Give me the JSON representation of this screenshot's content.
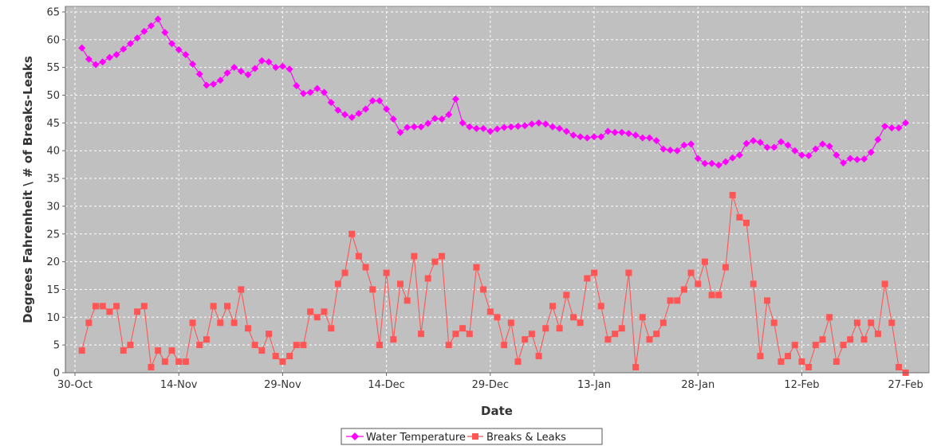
{
  "chart_data": {
    "type": "line",
    "xlabel": "Date",
    "ylabel": "Degrees Fahrenheit \\ # of Breaks-Leaks",
    "ylim": [
      0,
      66
    ],
    "yticks": [
      0,
      5,
      10,
      15,
      20,
      25,
      30,
      35,
      40,
      45,
      50,
      55,
      60,
      65
    ],
    "x_start": "30-Oct",
    "xlim_days": [
      0,
      122
    ],
    "xticks": [
      {
        "label": "30-Oct",
        "day": 0
      },
      {
        "label": "14-Nov",
        "day": 15
      },
      {
        "label": "29-Nov",
        "day": 30
      },
      {
        "label": "14-Dec",
        "day": 45
      },
      {
        "label": "29-Dec",
        "day": 60
      },
      {
        "label": "13-Jan",
        "day": 75
      },
      {
        "label": "28-Jan",
        "day": 90
      },
      {
        "label": "12-Feb",
        "day": 105
      },
      {
        "label": "27-Feb",
        "day": 120
      }
    ],
    "grid": true,
    "legend": "bottom-center",
    "series": [
      {
        "name": "Water Temperature",
        "color": "#ff00ff",
        "marker": "diamond",
        "start_day": 1,
        "values": [
          58.5,
          56.5,
          55.5,
          56.0,
          56.8,
          57.3,
          58.3,
          59.3,
          60.3,
          61.5,
          62.5,
          63.7,
          61.3,
          59.3,
          58.2,
          57.3,
          55.6,
          53.8,
          51.8,
          52.0,
          52.7,
          54.0,
          55.0,
          54.3,
          53.7,
          54.8,
          56.2,
          56.0,
          55.0,
          55.2,
          54.7,
          51.7,
          50.3,
          50.5,
          51.2,
          50.5,
          48.7,
          47.3,
          46.5,
          46.0,
          46.7,
          47.5,
          49.0,
          49.0,
          47.5,
          45.7,
          43.3,
          44.2,
          44.3,
          44.3,
          44.9,
          45.8,
          45.7,
          46.5,
          49.3,
          45.0,
          44.3,
          44.0,
          44.0,
          43.5,
          43.9,
          44.2,
          44.3,
          44.4,
          44.5,
          44.8,
          45.0,
          44.8,
          44.3,
          44.0,
          43.5,
          42.8,
          42.5,
          42.3,
          42.5,
          42.5,
          43.5,
          43.3,
          43.3,
          43.1,
          42.8,
          42.3,
          42.3,
          41.8,
          40.3,
          40.1,
          40.0,
          41.0,
          41.2,
          38.6,
          37.7,
          37.7,
          37.4,
          38.0,
          38.7,
          39.2,
          41.3,
          41.8,
          41.5,
          40.6,
          40.6,
          41.6,
          41.0,
          40.0,
          39.2,
          39.1,
          40.3,
          41.2,
          40.8,
          39.2,
          37.8,
          38.6,
          38.4,
          38.5,
          39.7,
          42.0,
          44.4,
          44.1,
          44.1,
          45.0
        ]
      },
      {
        "name": "Breaks & Leaks",
        "color": "#ff5555",
        "marker": "square",
        "start_day": 1,
        "values": [
          4,
          9,
          12,
          12,
          11,
          12,
          4,
          5,
          11,
          12,
          1,
          4,
          2,
          4,
          2,
          2,
          9,
          5,
          6,
          12,
          9,
          12,
          9,
          15,
          8,
          5,
          4,
          7,
          3,
          2,
          3,
          5,
          5,
          11,
          10,
          11,
          8,
          16,
          18,
          25,
          21,
          19,
          15,
          5,
          18,
          6,
          16,
          13,
          21,
          7,
          17,
          20,
          21,
          5,
          7,
          8,
          7,
          19,
          15,
          11,
          10,
          5,
          9,
          2,
          6,
          7,
          3,
          8,
          12,
          8,
          14,
          10,
          9,
          17,
          18,
          12,
          6,
          7,
          8,
          18,
          1,
          10,
          6,
          7,
          9,
          13,
          13,
          15,
          18,
          16,
          20,
          14,
          14,
          19,
          32,
          28,
          27,
          16,
          3,
          13,
          9,
          2,
          3,
          5,
          2,
          1,
          5,
          6,
          10,
          2,
          5,
          6,
          9,
          6,
          9,
          7,
          16,
          9,
          1,
          0
        ]
      }
    ]
  }
}
